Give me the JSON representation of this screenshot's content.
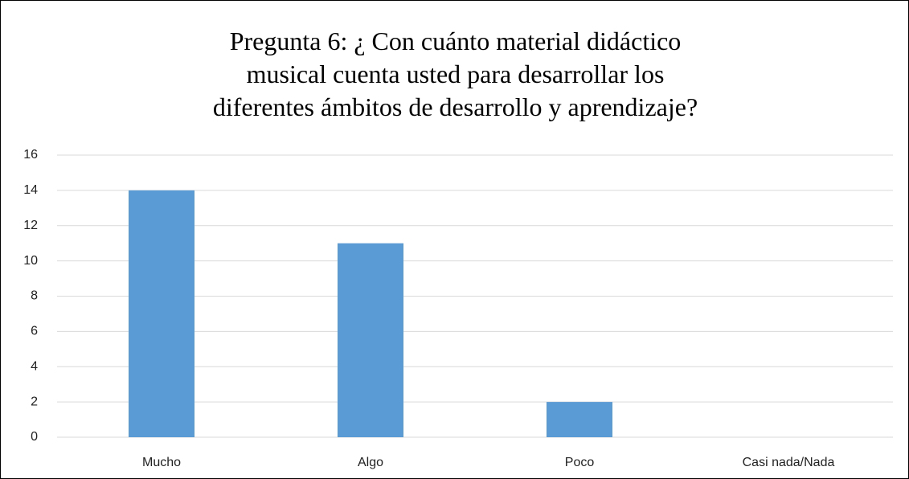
{
  "chart_data": {
    "type": "bar",
    "title": "Pregunta 6: ¿ Con cuánto material didáctico musical cuenta usted para desarrollar los diferentes ámbitos de desarrollo y aprendizaje?",
    "categories": [
      "Mucho",
      "Algo",
      "Poco",
      "Casi nada/Nada"
    ],
    "values": [
      14,
      11,
      2,
      0
    ],
    "color": "#5b9bd5",
    "ylim": [
      0,
      16
    ],
    "yticks": [
      0,
      2,
      4,
      6,
      8,
      10,
      12,
      14,
      16
    ],
    "grid": true
  }
}
